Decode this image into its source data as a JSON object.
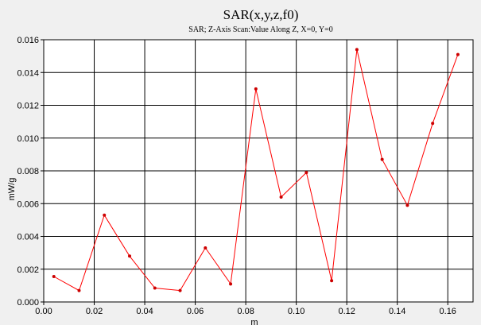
{
  "chart_data": {
    "type": "line",
    "title": "SAR(x,y,z,f0)",
    "subtitle": "SAR; Z-Axis Scan:Value Along Z, X=0, Y=0",
    "xlabel": "m",
    "ylabel": "mW/g",
    "xlim": [
      0.0,
      0.17
    ],
    "ylim": [
      0.0,
      0.016
    ],
    "grid": true,
    "x_ticks": [
      "0.00",
      "0.02",
      "0.04",
      "0.06",
      "0.08",
      "0.10",
      "0.12",
      "0.14",
      "0.16"
    ],
    "y_ticks": [
      "0.000",
      "0.002",
      "0.004",
      "0.006",
      "0.008",
      "0.010",
      "0.012",
      "0.014",
      "0.016"
    ],
    "series": [
      {
        "color": "#ff0000",
        "x": [
          0.004,
          0.014,
          0.024,
          0.034,
          0.044,
          0.054,
          0.064,
          0.074,
          0.084,
          0.094,
          0.104,
          0.114,
          0.124,
          0.134,
          0.144,
          0.154,
          0.164
        ],
        "y": [
          0.00155,
          0.0007,
          0.0053,
          0.0028,
          0.00085,
          0.0007,
          0.0033,
          0.0011,
          0.013,
          0.0064,
          0.0079,
          0.0013,
          0.0154,
          0.0087,
          0.0059,
          0.0109,
          0.0151
        ]
      }
    ]
  },
  "colors": {
    "background": "#f0f0f0",
    "plot_background": "#ffffff",
    "grid": "#000000",
    "line": "#ff0000"
  }
}
